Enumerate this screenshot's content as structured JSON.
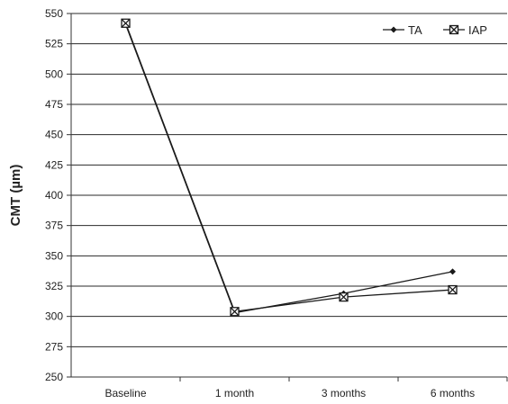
{
  "chart_data": {
    "type": "line",
    "title": "",
    "xlabel": "",
    "ylabel": "CMT (µm)",
    "categories": [
      "Baseline",
      "1 month",
      "3 months",
      "6 months"
    ],
    "ylim": [
      250,
      550
    ],
    "yticks": [
      250,
      275,
      300,
      325,
      350,
      375,
      400,
      425,
      450,
      475,
      500,
      525,
      550
    ],
    "grid": true,
    "legend": "top-right",
    "series": [
      {
        "name": "TA",
        "marker": "diamond",
        "color": "#1a1a1a",
        "values": [
          541,
          303,
          319,
          337
        ]
      },
      {
        "name": "IAP",
        "marker": "square-x",
        "color": "#1a1a1a",
        "values": [
          542,
          304,
          316,
          322
        ]
      }
    ]
  }
}
